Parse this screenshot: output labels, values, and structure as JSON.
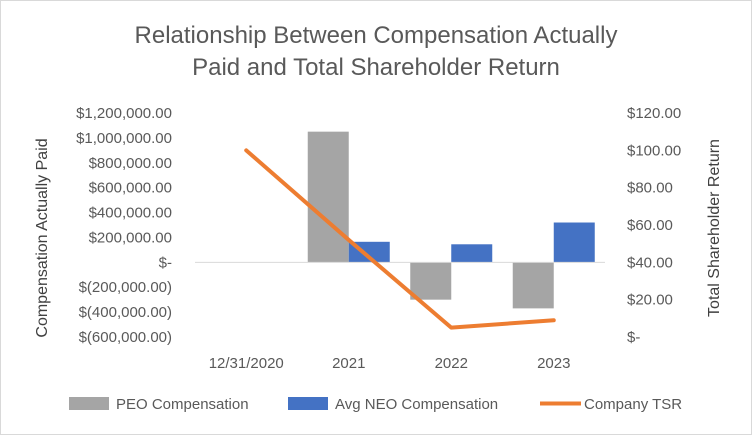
{
  "chart_data": {
    "type": "bar",
    "title": "Relationship Between Compensation Actually Paid and Total Shareholder Return",
    "title_lines": [
      "Relationship Between Compensation Actually",
      "Paid and Total Shareholder Return"
    ],
    "categories": [
      "12/31/2020",
      "2021",
      "2022",
      "2023"
    ],
    "series": [
      {
        "name": "PEO Compensation",
        "type": "bar",
        "axis": "left",
        "color": "#a5a5a5",
        "values": [
          null,
          1050000,
          -300000,
          -370000
        ]
      },
      {
        "name": "Avg NEO Compensation",
        "type": "bar",
        "axis": "left",
        "color": "#4472c4",
        "values": [
          null,
          165000,
          145000,
          320000
        ]
      },
      {
        "name": "Company TSR",
        "type": "line",
        "axis": "right",
        "color": "#ed7d31",
        "values": [
          100,
          52,
          5,
          9
        ]
      }
    ],
    "ylabel": "Compensation Actually Paid",
    "y2label": "Total Shareholder Return",
    "ylim": [
      -600000,
      1200000
    ],
    "y2lim": [
      0,
      120
    ],
    "yticks": [
      1200000,
      1000000,
      800000,
      600000,
      400000,
      200000,
      0,
      -200000,
      -400000,
      -600000
    ],
    "ytick_labels": [
      "$1,200,000.00",
      "$1,000,000.00",
      "$800,000.00",
      "$600,000.00",
      "$400,000.00",
      "$200,000.00",
      "$-",
      "$(200,000.00)",
      "$(400,000.00)",
      "$(600,000.00)"
    ],
    "y2ticks": [
      120,
      100,
      80,
      60,
      40,
      20,
      0
    ],
    "y2tick_labels": [
      "$120.00",
      "$100.00",
      "$80.00",
      "$60.00",
      "$40.00",
      "$20.00",
      "$-"
    ],
    "grid": false,
    "legend": "bottom"
  }
}
